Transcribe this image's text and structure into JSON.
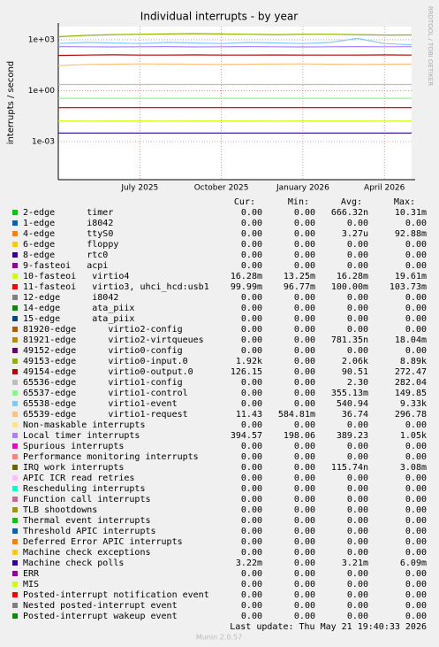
{
  "chart_data": {
    "type": "line",
    "title": "Individual interrupts - by year",
    "ylabel": "interrupts / second",
    "watermark": "RRDTOOL / TOBI OETIKER",
    "log_scale": true,
    "grid": true,
    "ylim": [
      5.7e-06,
      6000
    ],
    "yticks": [
      {
        "value": 1000,
        "label": "1e+03"
      },
      {
        "value": 1,
        "label": "1e+00"
      },
      {
        "value": 0.001,
        "label": "1e-03"
      }
    ],
    "xlim": [
      "2025-04",
      "2026-05"
    ],
    "xticks": [
      {
        "value": "2025-07",
        "label": "July 2025"
      },
      {
        "value": "2025-10",
        "label": "October 2025"
      },
      {
        "value": "2026-01",
        "label": "January 2026"
      },
      {
        "value": "2026-04",
        "label": "April 2026"
      }
    ],
    "x": [
      "2025-04",
      "2025-05",
      "2025-06",
      "2025-07",
      "2025-08",
      "2025-09",
      "2025-10",
      "2025-11",
      "2025-12",
      "2026-01",
      "2026-02",
      "2026-03",
      "2026-04",
      "2026-05"
    ],
    "legend_columns": [
      "Cur:",
      "Min:",
      "Avg:",
      "Max:"
    ],
    "series": [
      {
        "name": "2-edge      timer",
        "color": "#00CC00",
        "stats": [
          "0.00",
          "0.00",
          "666.32n",
          "10.31m"
        ]
      },
      {
        "name": "1-edge      i8042",
        "color": "#0066B3",
        "stats": [
          "0.00",
          "0.00",
          "0.00",
          "0.00"
        ]
      },
      {
        "name": "4-edge      ttyS0",
        "color": "#FF8000",
        "stats": [
          "0.00",
          "0.00",
          "3.27u",
          "92.88m"
        ]
      },
      {
        "name": "6-edge      floppy",
        "color": "#FFCC00",
        "stats": [
          "0.00",
          "0.00",
          "0.00",
          "0.00"
        ]
      },
      {
        "name": "8-edge      rtc0",
        "color": "#330099",
        "stats": [
          "0.00",
          "0.00",
          "0.00",
          "0.00"
        ]
      },
      {
        "name": "9-fasteoi   acpi",
        "color": "#990099",
        "stats": [
          "0.00",
          "0.00",
          "0.00",
          "0.00"
        ]
      },
      {
        "name": "10-fasteoi   virtio4",
        "color": "#CCFF00",
        "stats": [
          "16.28m",
          "13.25m",
          "16.28m",
          "19.61m"
        ],
        "values": [
          0.0163,
          0.0162,
          0.0164,
          0.0163,
          0.0162,
          0.0163,
          0.0164,
          0.0163,
          0.0162,
          0.0163,
          0.0164,
          0.0163,
          0.0162,
          0.0163
        ]
      },
      {
        "name": "11-fasteoi   virtio3, uhci_hcd:usb1",
        "color": "#FF0000",
        "stats": [
          "99.99m",
          "96.77m",
          "100.00m",
          "103.73m"
        ],
        "values": [
          0.1,
          0.1,
          0.1,
          0.1,
          0.1,
          0.1,
          0.1,
          0.1,
          0.1,
          0.1,
          0.1,
          0.1,
          0.1,
          0.1
        ]
      },
      {
        "name": "12-edge      i8042",
        "color": "#808080",
        "stats": [
          "0.00",
          "0.00",
          "0.00",
          "0.00"
        ]
      },
      {
        "name": "14-edge      ata_piix",
        "color": "#008F00",
        "stats": [
          "0.00",
          "0.00",
          "0.00",
          "0.00"
        ]
      },
      {
        "name": "15-edge      ata_piix",
        "color": "#00487D",
        "stats": [
          "0.00",
          "0.00",
          "0.00",
          "0.00"
        ]
      },
      {
        "name": "81920-edge      virtio2-config",
        "color": "#B35A00",
        "stats": [
          "0.00",
          "0.00",
          "0.00",
          "0.00"
        ]
      },
      {
        "name": "81921-edge      virtio2-virtqueues",
        "color": "#B38F00",
        "stats": [
          "0.00",
          "0.00",
          "781.35n",
          "18.04m"
        ]
      },
      {
        "name": "49152-edge      virtio0-config",
        "color": "#6B006B",
        "stats": [
          "0.00",
          "0.00",
          "0.00",
          "0.00"
        ]
      },
      {
        "name": "49153-edge      virtio0-input.0",
        "color": "#8FB300",
        "stats": [
          "1.92k",
          "0.00",
          "2.06k",
          "8.89k"
        ],
        "values": [
          1500,
          1800,
          2000,
          2100,
          2200,
          2300,
          2200,
          2100,
          2000,
          2100,
          2100,
          2000,
          1900,
          1920
        ]
      },
      {
        "name": "49154-edge      virtio0-output.0",
        "color": "#B30000",
        "stats": [
          "126.15",
          "0.00",
          "90.51",
          "272.47"
        ],
        "values": [
          120,
          125,
          130,
          126,
          125,
          128,
          126,
          125,
          127,
          126,
          125,
          126,
          128,
          126
        ]
      },
      {
        "name": "65536-edge      virtio1-config",
        "color": "#BEBEBE",
        "stats": [
          "0.00",
          "0.00",
          "2.30",
          "282.04"
        ],
        "values": [
          2.3,
          2.3,
          2.3,
          2.3,
          2.3,
          2.3,
          2.3,
          2.3,
          2.3,
          2.3,
          2.3,
          2.3,
          2.3,
          2.3
        ]
      },
      {
        "name": "65537-edge      virtio1-control",
        "color": "#80FF80",
        "stats": [
          "0.00",
          "0.00",
          "355.13m",
          "149.85"
        ],
        "values": [
          0.355,
          0.355,
          0.355,
          0.355,
          0.355,
          0.355,
          0.355,
          0.355,
          0.355,
          0.355,
          0.355,
          0.355,
          0.355,
          0.355
        ]
      },
      {
        "name": "65538-edge      virtio1-event",
        "color": "#80C9FF",
        "stats": [
          "0.00",
          "0.00",
          "540.94",
          "9.33k"
        ],
        "values": [
          600,
          700,
          650,
          600,
          700,
          650,
          600,
          700,
          650,
          600,
          700,
          1200,
          600,
          500
        ]
      },
      {
        "name": "65539-edge      virtio1-request",
        "color": "#FFC080",
        "stats": [
          "11.43",
          "584.81m",
          "36.74",
          "296.78"
        ],
        "values": [
          30,
          35,
          36,
          38,
          37,
          36,
          35,
          36,
          37,
          38,
          36,
          35,
          36,
          37
        ]
      },
      {
        "name": "Non-maskable interrupts",
        "color": "#FFE680",
        "stats": [
          "0.00",
          "0.00",
          "0.00",
          "0.00"
        ]
      },
      {
        "name": "Local timer interrupts",
        "color": "#AA80FF",
        "stats": [
          "394.57",
          "198.06",
          "389.23",
          "1.05k"
        ],
        "values": [
          400,
          390,
          380,
          390,
          400,
          380,
          390,
          400,
          390,
          380,
          390,
          400,
          390,
          395
        ]
      },
      {
        "name": "Spurious interrupts",
        "color": "#EE00CC",
        "stats": [
          "0.00",
          "0.00",
          "0.00",
          "0.00"
        ]
      },
      {
        "name": "Performance monitoring interrupts",
        "color": "#FF8080",
        "stats": [
          "0.00",
          "0.00",
          "0.00",
          "0.00"
        ]
      },
      {
        "name": "IRQ work interrupts",
        "color": "#666600",
        "stats": [
          "0.00",
          "0.00",
          "115.74n",
          "3.08m"
        ]
      },
      {
        "name": "APIC ICR read retries",
        "color": "#FFBFFF",
        "stats": [
          "0.00",
          "0.00",
          "0.00",
          "0.00"
        ]
      },
      {
        "name": "Rescheduling interrupts",
        "color": "#00FFCC",
        "stats": [
          "0.00",
          "0.00",
          "0.00",
          "0.00"
        ]
      },
      {
        "name": "Function call interrupts",
        "color": "#CC6699",
        "stats": [
          "0.00",
          "0.00",
          "0.00",
          "0.00"
        ]
      },
      {
        "name": "TLB shootdowns",
        "color": "#999900",
        "stats": [
          "0.00",
          "0.00",
          "0.00",
          "0.00"
        ]
      },
      {
        "name": "Thermal event interrupts",
        "color": "#00CC00",
        "stats": [
          "0.00",
          "0.00",
          "0.00",
          "0.00"
        ]
      },
      {
        "name": "Threshold APIC interrupts",
        "color": "#0066B3",
        "stats": [
          "0.00",
          "0.00",
          "0.00",
          "0.00"
        ]
      },
      {
        "name": "Deferred Error APIC interrupts",
        "color": "#FF8000",
        "stats": [
          "0.00",
          "0.00",
          "0.00",
          "0.00"
        ]
      },
      {
        "name": "Machine check exceptions",
        "color": "#FFCC00",
        "stats": [
          "0.00",
          "0.00",
          "0.00",
          "0.00"
        ]
      },
      {
        "name": "Machine check polls",
        "color": "#330099",
        "stats": [
          "3.22m",
          "0.00",
          "3.21m",
          "6.09m"
        ],
        "values": [
          0.0032,
          0.0032,
          0.0032,
          0.0032,
          0.0032,
          0.0032,
          0.0032,
          0.0032,
          0.0032,
          0.0032,
          0.0032,
          0.0032,
          0.0032,
          0.0032
        ]
      },
      {
        "name": "ERR",
        "color": "#990099",
        "stats": [
          "0.00",
          "0.00",
          "0.00",
          "0.00"
        ]
      },
      {
        "name": "MIS",
        "color": "#CCFF00",
        "stats": [
          "0.00",
          "0.00",
          "0.00",
          "0.00"
        ]
      },
      {
        "name": "Posted-interrupt notification event",
        "color": "#FF0000",
        "stats": [
          "0.00",
          "0.00",
          "0.00",
          "0.00"
        ]
      },
      {
        "name": "Nested posted-interrupt event",
        "color": "#808080",
        "stats": [
          "0.00",
          "0.00",
          "0.00",
          "0.00"
        ]
      },
      {
        "name": "Posted-interrupt wakeup event",
        "color": "#008F00",
        "stats": [
          "0.00",
          "0.00",
          "0.00",
          "0.00"
        ]
      }
    ],
    "last_update": "Last update: Thu May 21 19:40:33 2026",
    "footer": "Munin 2.0.57"
  }
}
